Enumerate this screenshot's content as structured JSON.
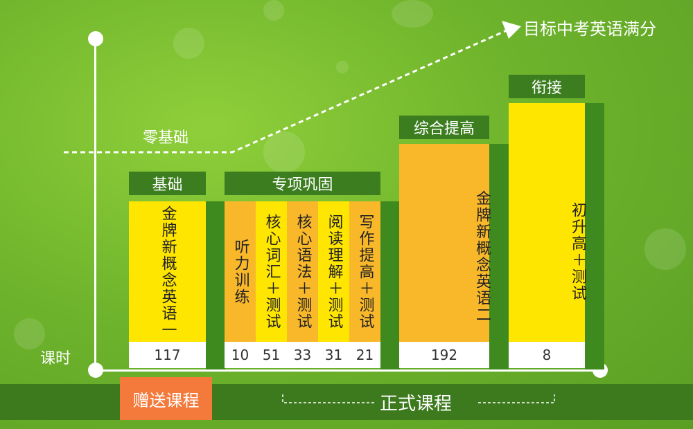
{
  "goal": "目标中考英语满分",
  "zero": "零基础",
  "hours_label": "课时",
  "headers": {
    "basic": "基础",
    "special": "专项巩固",
    "improve": "综合提高",
    "bridge": "衔接"
  },
  "courses": [
    {
      "name": "金牌新概念英语一",
      "hours": "117",
      "color": "#ffe600"
    },
    {
      "name": "听力训练",
      "hours": "10",
      "color": "#f9b82a"
    },
    {
      "name": "核心词汇＋测试",
      "hours": "51",
      "color": "#ffe600"
    },
    {
      "name": "核心语法＋测试",
      "hours": "33",
      "color": "#f9b82a"
    },
    {
      "name": "阅读理解＋测试",
      "hours": "31",
      "color": "#ffe600"
    },
    {
      "name": "写作提高＋测试",
      "hours": "21",
      "color": "#f9b82a"
    },
    {
      "name": "金牌新概念英语二",
      "hours": "192",
      "color": "#f9b82a"
    },
    {
      "name": "初升高＋测试",
      "hours": "8",
      "color": "#ffe600"
    }
  ],
  "bottom": {
    "gift": "赠送课程",
    "formal": "正式课程"
  }
}
